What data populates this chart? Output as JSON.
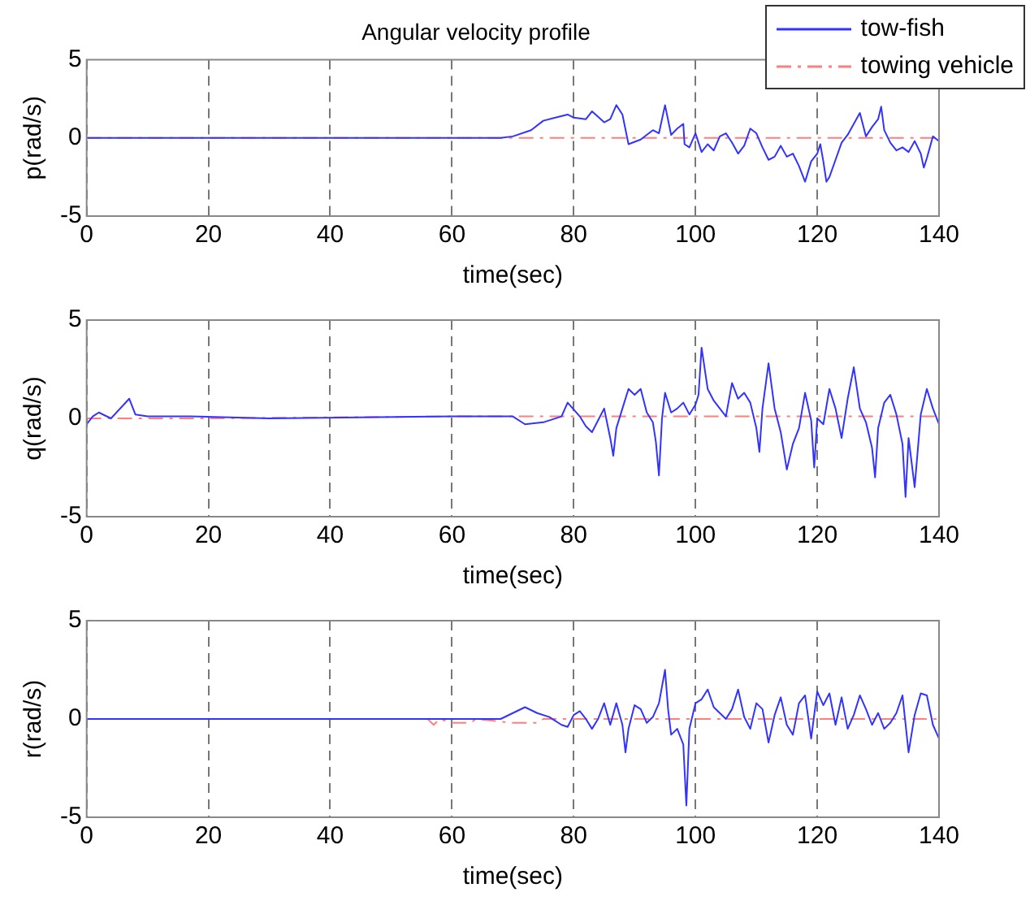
{
  "chart_data": [
    {
      "type": "line",
      "title": "Angular velocity profile",
      "xlabel": "time(sec)",
      "ylabel": "p(rad/s)",
      "xlim": [
        0,
        140
      ],
      "xticks": [
        0,
        20,
        40,
        60,
        80,
        100,
        120,
        140
      ],
      "ylim": [
        -5,
        5
      ],
      "yticks": [
        -5,
        0,
        5
      ],
      "grid": "x",
      "legend": "top right",
      "marker": "none",
      "series": [
        {
          "name": "tow-fish",
          "color": "#3333ff",
          "line_style": "solid",
          "x": [
            0,
            68,
            70,
            73,
            75,
            77,
            79,
            80,
            82,
            83,
            85,
            86,
            87,
            88,
            89,
            91,
            93,
            94,
            95,
            96,
            97,
            98,
            98.2,
            99,
            100,
            101,
            102,
            103,
            104,
            105,
            106,
            107,
            108,
            109,
            110,
            111,
            112,
            113,
            114,
            115,
            116,
            117,
            118,
            119,
            120,
            120.5,
            121,
            121.5,
            122,
            123,
            124,
            125,
            126,
            127,
            128,
            129,
            130,
            130.5,
            131,
            132,
            133,
            134,
            135,
            136,
            137,
            137.5,
            138,
            139,
            140
          ],
          "values": [
            0,
            0,
            0.1,
            0.5,
            1.1,
            1.3,
            1.5,
            1.3,
            1.2,
            1.7,
            1,
            1.2,
            2.1,
            1.5,
            -0.4,
            -0.1,
            0.5,
            0.3,
            2.1,
            0.2,
            0.6,
            0.9,
            -0.4,
            -0.6,
            0.3,
            -0.9,
            -0.4,
            -0.8,
            0.1,
            0.3,
            -0.3,
            -1,
            -0.5,
            0.6,
            0.3,
            -0.6,
            -1.4,
            -1.2,
            -0.5,
            -1.2,
            -1,
            -1.8,
            -2.8,
            -1.5,
            -1,
            -0.4,
            -1.5,
            -2.8,
            -2.5,
            -1.4,
            -0.3,
            0.2,
            0.9,
            1.6,
            0.1,
            0.7,
            1.2,
            2,
            0.5,
            -0.3,
            -0.8,
            -0.6,
            -0.9,
            -0.2,
            -1,
            -1.9,
            -1.3,
            0.1,
            -0.2
          ]
        },
        {
          "name": "towing vehicle",
          "color": "#ff7f7f",
          "line_style": "dashed",
          "x": [
            0,
            140
          ],
          "values": [
            0,
            0
          ]
        }
      ]
    },
    {
      "type": "line",
      "xlabel": "time(sec)",
      "ylabel": "q(rad/s)",
      "xlim": [
        0,
        140
      ],
      "xticks": [
        0,
        20,
        40,
        60,
        80,
        100,
        120,
        140
      ],
      "ylim": [
        -5,
        5
      ],
      "yticks": [
        -5,
        0,
        5
      ],
      "grid": "x",
      "marker": "none",
      "series": [
        {
          "color": "#3333ff",
          "line_style": "solid",
          "x": [
            0,
            1,
            2,
            4,
            7,
            8,
            10,
            17,
            30,
            60,
            70,
            72,
            75,
            78,
            79,
            81,
            82,
            83,
            85,
            86,
            86.5,
            87,
            88,
            89,
            90,
            91,
            92,
            93,
            93.5,
            94,
            94.5,
            95,
            96,
            97,
            98,
            99,
            100,
            100.5,
            101,
            102,
            103,
            104,
            105,
            106,
            107,
            108,
            109,
            110,
            110.5,
            111,
            112,
            113,
            114,
            115,
            116,
            117,
            118,
            119,
            119.5,
            120,
            121,
            122,
            123,
            124,
            125,
            126,
            127,
            128,
            129,
            129.5,
            130,
            131,
            132,
            133,
            134,
            134.5,
            135,
            136,
            137,
            138,
            139,
            140
          ],
          "values": [
            -0.3,
            0.1,
            0.3,
            0,
            1,
            0.2,
            0.1,
            0.1,
            0,
            0.1,
            0.1,
            -0.3,
            -0.2,
            0.1,
            0.8,
            0.1,
            -0.4,
            -0.7,
            0.5,
            -1,
            -1.9,
            -0.5,
            0.5,
            1.5,
            1.2,
            1.5,
            0.3,
            -0.2,
            -1.2,
            -2.9,
            0,
            1.3,
            0.3,
            0.5,
            0.8,
            0.2,
            0.7,
            1.2,
            3.6,
            1.5,
            0.9,
            0.5,
            0.1,
            1.8,
            1,
            1.3,
            0.8,
            -0.5,
            -1.7,
            0.5,
            2.8,
            0.5,
            -0.7,
            -2.6,
            -1.3,
            -0.5,
            1.3,
            -0.1,
            -2.5,
            0,
            -0.3,
            1.5,
            0.5,
            -1,
            1,
            2.6,
            0.5,
            -0.2,
            -1.5,
            -3,
            -0.5,
            0.8,
            1.2,
            0.2,
            -1.3,
            -4,
            -1,
            -3.5,
            0.2,
            1.5,
            0.5,
            -0.3
          ]
        },
        {
          "color": "#ff7f7f",
          "line_style": "dashed",
          "x": [
            0,
            20,
            60,
            80,
            100,
            120,
            140
          ],
          "values": [
            0,
            0,
            0.1,
            0.1,
            0.1,
            0.1,
            0.1
          ]
        }
      ]
    },
    {
      "type": "line",
      "xlabel": "time(sec)",
      "ylabel": "r(rad/s)",
      "xlim": [
        0,
        140
      ],
      "xticks": [
        0,
        20,
        40,
        60,
        80,
        100,
        120,
        140
      ],
      "ylim": [
        -5,
        5
      ],
      "yticks": [
        -5,
        0,
        5
      ],
      "grid": "x",
      "marker": "none",
      "series": [
        {
          "color": "#3333ff",
          "line_style": "solid",
          "x": [
            0,
            68,
            70,
            72,
            74,
            76,
            78,
            79,
            80,
            81,
            82,
            83,
            84,
            85,
            86,
            87,
            88,
            88.5,
            89,
            90,
            91,
            92,
            93,
            94,
            95,
            95.5,
            96,
            97,
            98,
            98.5,
            99,
            100,
            101,
            102,
            103,
            104,
            105,
            106,
            107,
            108,
            109,
            110,
            111,
            112,
            113,
            114,
            115,
            116,
            117,
            118,
            119,
            120,
            121,
            122,
            123,
            124,
            125,
            126,
            127,
            128,
            129,
            130,
            131,
            132,
            133,
            134,
            135,
            136,
            137,
            138,
            139,
            140
          ],
          "values": [
            0,
            0,
            0.3,
            0.6,
            0.3,
            0.1,
            -0.3,
            -0.4,
            0.2,
            0.4,
            0,
            -0.5,
            0,
            0.8,
            -0.3,
            0.8,
            -0.3,
            -1.7,
            -0.5,
            0.7,
            0.5,
            -0.2,
            0.1,
            0.8,
            2.5,
            0.5,
            -0.8,
            -0.5,
            -1.3,
            -4.4,
            -0.5,
            0.8,
            1,
            1.5,
            0.6,
            0.3,
            0,
            0.5,
            1.5,
            0.1,
            -0.5,
            0.8,
            0.5,
            -1.2,
            0.2,
            1.1,
            -0.3,
            -0.8,
            0.8,
            1.2,
            -1,
            1.4,
            0.7,
            1.3,
            -0.3,
            1.1,
            -0.5,
            0.2,
            1.2,
            0.5,
            -0.3,
            0.3,
            -0.5,
            -0.2,
            0.3,
            1.2,
            -1.7,
            0.2,
            1.3,
            1.2,
            -0.3,
            -1
          ]
        },
        {
          "color": "#ff7f7f",
          "line_style": "dashed",
          "x": [
            0,
            56,
            57,
            58,
            60,
            63,
            64,
            70,
            74,
            75,
            140
          ],
          "values": [
            0,
            0,
            -0.3,
            0,
            -0.2,
            -0.2,
            0,
            -0.2,
            -0.2,
            0,
            0
          ]
        }
      ]
    }
  ]
}
